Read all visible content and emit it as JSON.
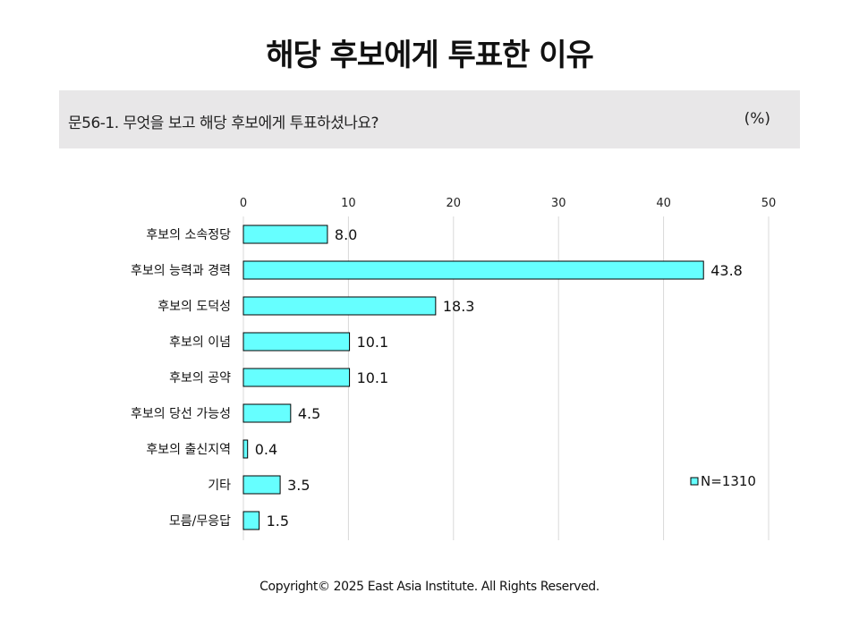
{
  "title": "해당 후보에게 투표한 이유",
  "question": "문56-1. 무엇을 보고 해당 후보에게 투표하셨나요?",
  "unit": "(%)",
  "copyright": "Copyright© 2025 East Asia Institute. All Rights Reserved.",
  "colors": {
    "bar_fill": "#66ffff",
    "bar_stroke": "#000000",
    "grid": "#d9d9d9"
  },
  "chart_data": {
    "type": "bar",
    "orientation": "horizontal",
    "categories": [
      "후보의 소속정당",
      "후보의 능력과 경력",
      "후보의 도덕성",
      "후보의 이념",
      "후보의 공약",
      "후보의 당선 가능성",
      "후보의 출신지역",
      "기타",
      "모름/무응답"
    ],
    "series": [
      {
        "name": "N=1310",
        "values": [
          8.0,
          43.8,
          18.3,
          10.1,
          10.1,
          4.5,
          0.4,
          3.5,
          1.5
        ]
      }
    ],
    "data_labels": [
      "8.0",
      "43.8",
      "18.3",
      "10.1",
      "10.1",
      "4.5",
      "0.4",
      "3.5",
      "1.5"
    ],
    "xlim": [
      0,
      50
    ],
    "xticks": [
      0,
      10,
      20,
      30,
      40,
      50
    ],
    "xtick_position": "top",
    "grid": true,
    "legend_position": "right"
  }
}
